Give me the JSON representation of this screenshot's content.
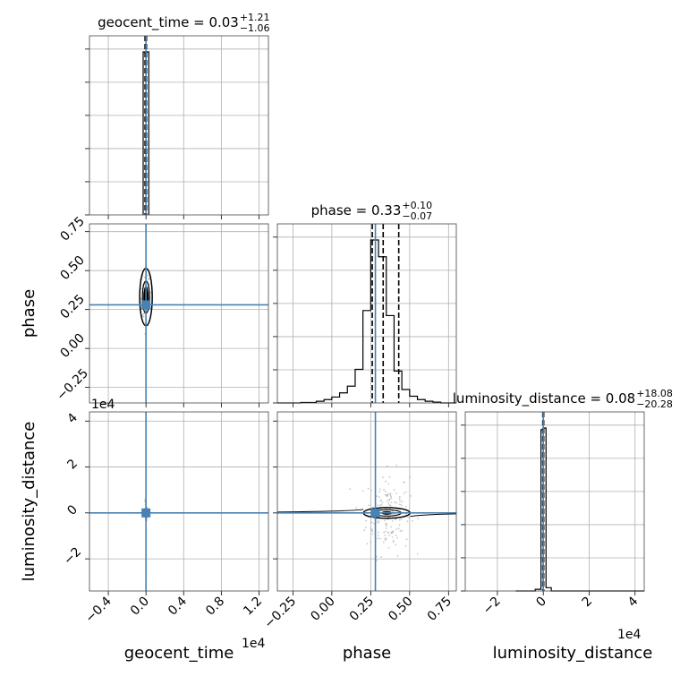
{
  "chart_data": {
    "type": "corner",
    "parameters": [
      "geocent_time",
      "phase",
      "luminosity_distance"
    ],
    "truth_color": "#4682b4",
    "titles": [
      {
        "param": "geocent_time",
        "prefix": "geocent_time = ",
        "median": "0.03",
        "upper": "+1.21",
        "lower": "−1.06"
      },
      {
        "param": "phase",
        "prefix": "phase = ",
        "median": "0.33",
        "upper": "+0.10",
        "lower": "−0.07"
      },
      {
        "param": "luminosity_distance",
        "prefix": "luminosity_distance = ",
        "median": "0.08",
        "upper": "+18.08",
        "lower": "−20.28"
      }
    ],
    "axes": {
      "geocent_time": {
        "range": [
          -0.6,
          1.3
        ],
        "ticks": [
          -0.4,
          0.0,
          0.4,
          0.8,
          1.2
        ],
        "tick_labels": [
          "−0.4",
          "0.0",
          "0.4",
          "0.8",
          "1.2"
        ],
        "scale_label": "1e4",
        "truth": 0.0
      },
      "phase": {
        "range": [
          -0.35,
          0.8
        ],
        "ticks": [
          -0.25,
          0.0,
          0.25,
          0.5,
          0.75
        ],
        "tick_labels": [
          "−0.25",
          "0.00",
          "0.25",
          "0.50",
          "0.75"
        ],
        "truth": 0.28
      },
      "luminosity_distance": {
        "range": [
          -3.4,
          4.4
        ],
        "ticks": [
          -2,
          0,
          2,
          4
        ],
        "tick_labels": [
          "−2",
          "0",
          "2",
          "4"
        ],
        "scale_label": "1e4",
        "truth": 0.0
      }
    },
    "histograms": {
      "geocent_time": {
        "bin_edges": [
          -0.03,
          0.03
        ],
        "counts": [
          1.0
        ],
        "quantile_lines": [
          -0.01,
          0.0,
          0.005
        ]
      },
      "phase": {
        "bin_edges": [
          -0.35,
          -0.2,
          -0.1,
          -0.05,
          0.0,
          0.05,
          0.1,
          0.15,
          0.2,
          0.25,
          0.3,
          0.35,
          0.4,
          0.45,
          0.5,
          0.55,
          0.6,
          0.65,
          0.7,
          0.8
        ],
        "counts": [
          0.0,
          0.003,
          0.01,
          0.02,
          0.035,
          0.06,
          0.1,
          0.2,
          0.55,
          0.97,
          0.87,
          0.52,
          0.19,
          0.08,
          0.04,
          0.02,
          0.01,
          0.005,
          0.0
        ],
        "quantile_lines": [
          0.26,
          0.33,
          0.43
        ]
      },
      "luminosity_distance": {
        "bin_edges": [
          -1.2,
          -0.35,
          -0.1,
          0.0,
          0.12,
          0.35,
          4.4
        ],
        "counts": [
          0.0,
          0.01,
          0.98,
          0.99,
          0.02,
          0.0
        ],
        "quantile_lines": [
          -0.02,
          0.0,
          0.018
        ]
      }
    },
    "pairs": [
      {
        "x": "geocent_time",
        "y": "phase"
      },
      {
        "x": "geocent_time",
        "y": "luminosity_distance"
      },
      {
        "x": "phase",
        "y": "luminosity_distance"
      }
    ],
    "grid": true
  }
}
